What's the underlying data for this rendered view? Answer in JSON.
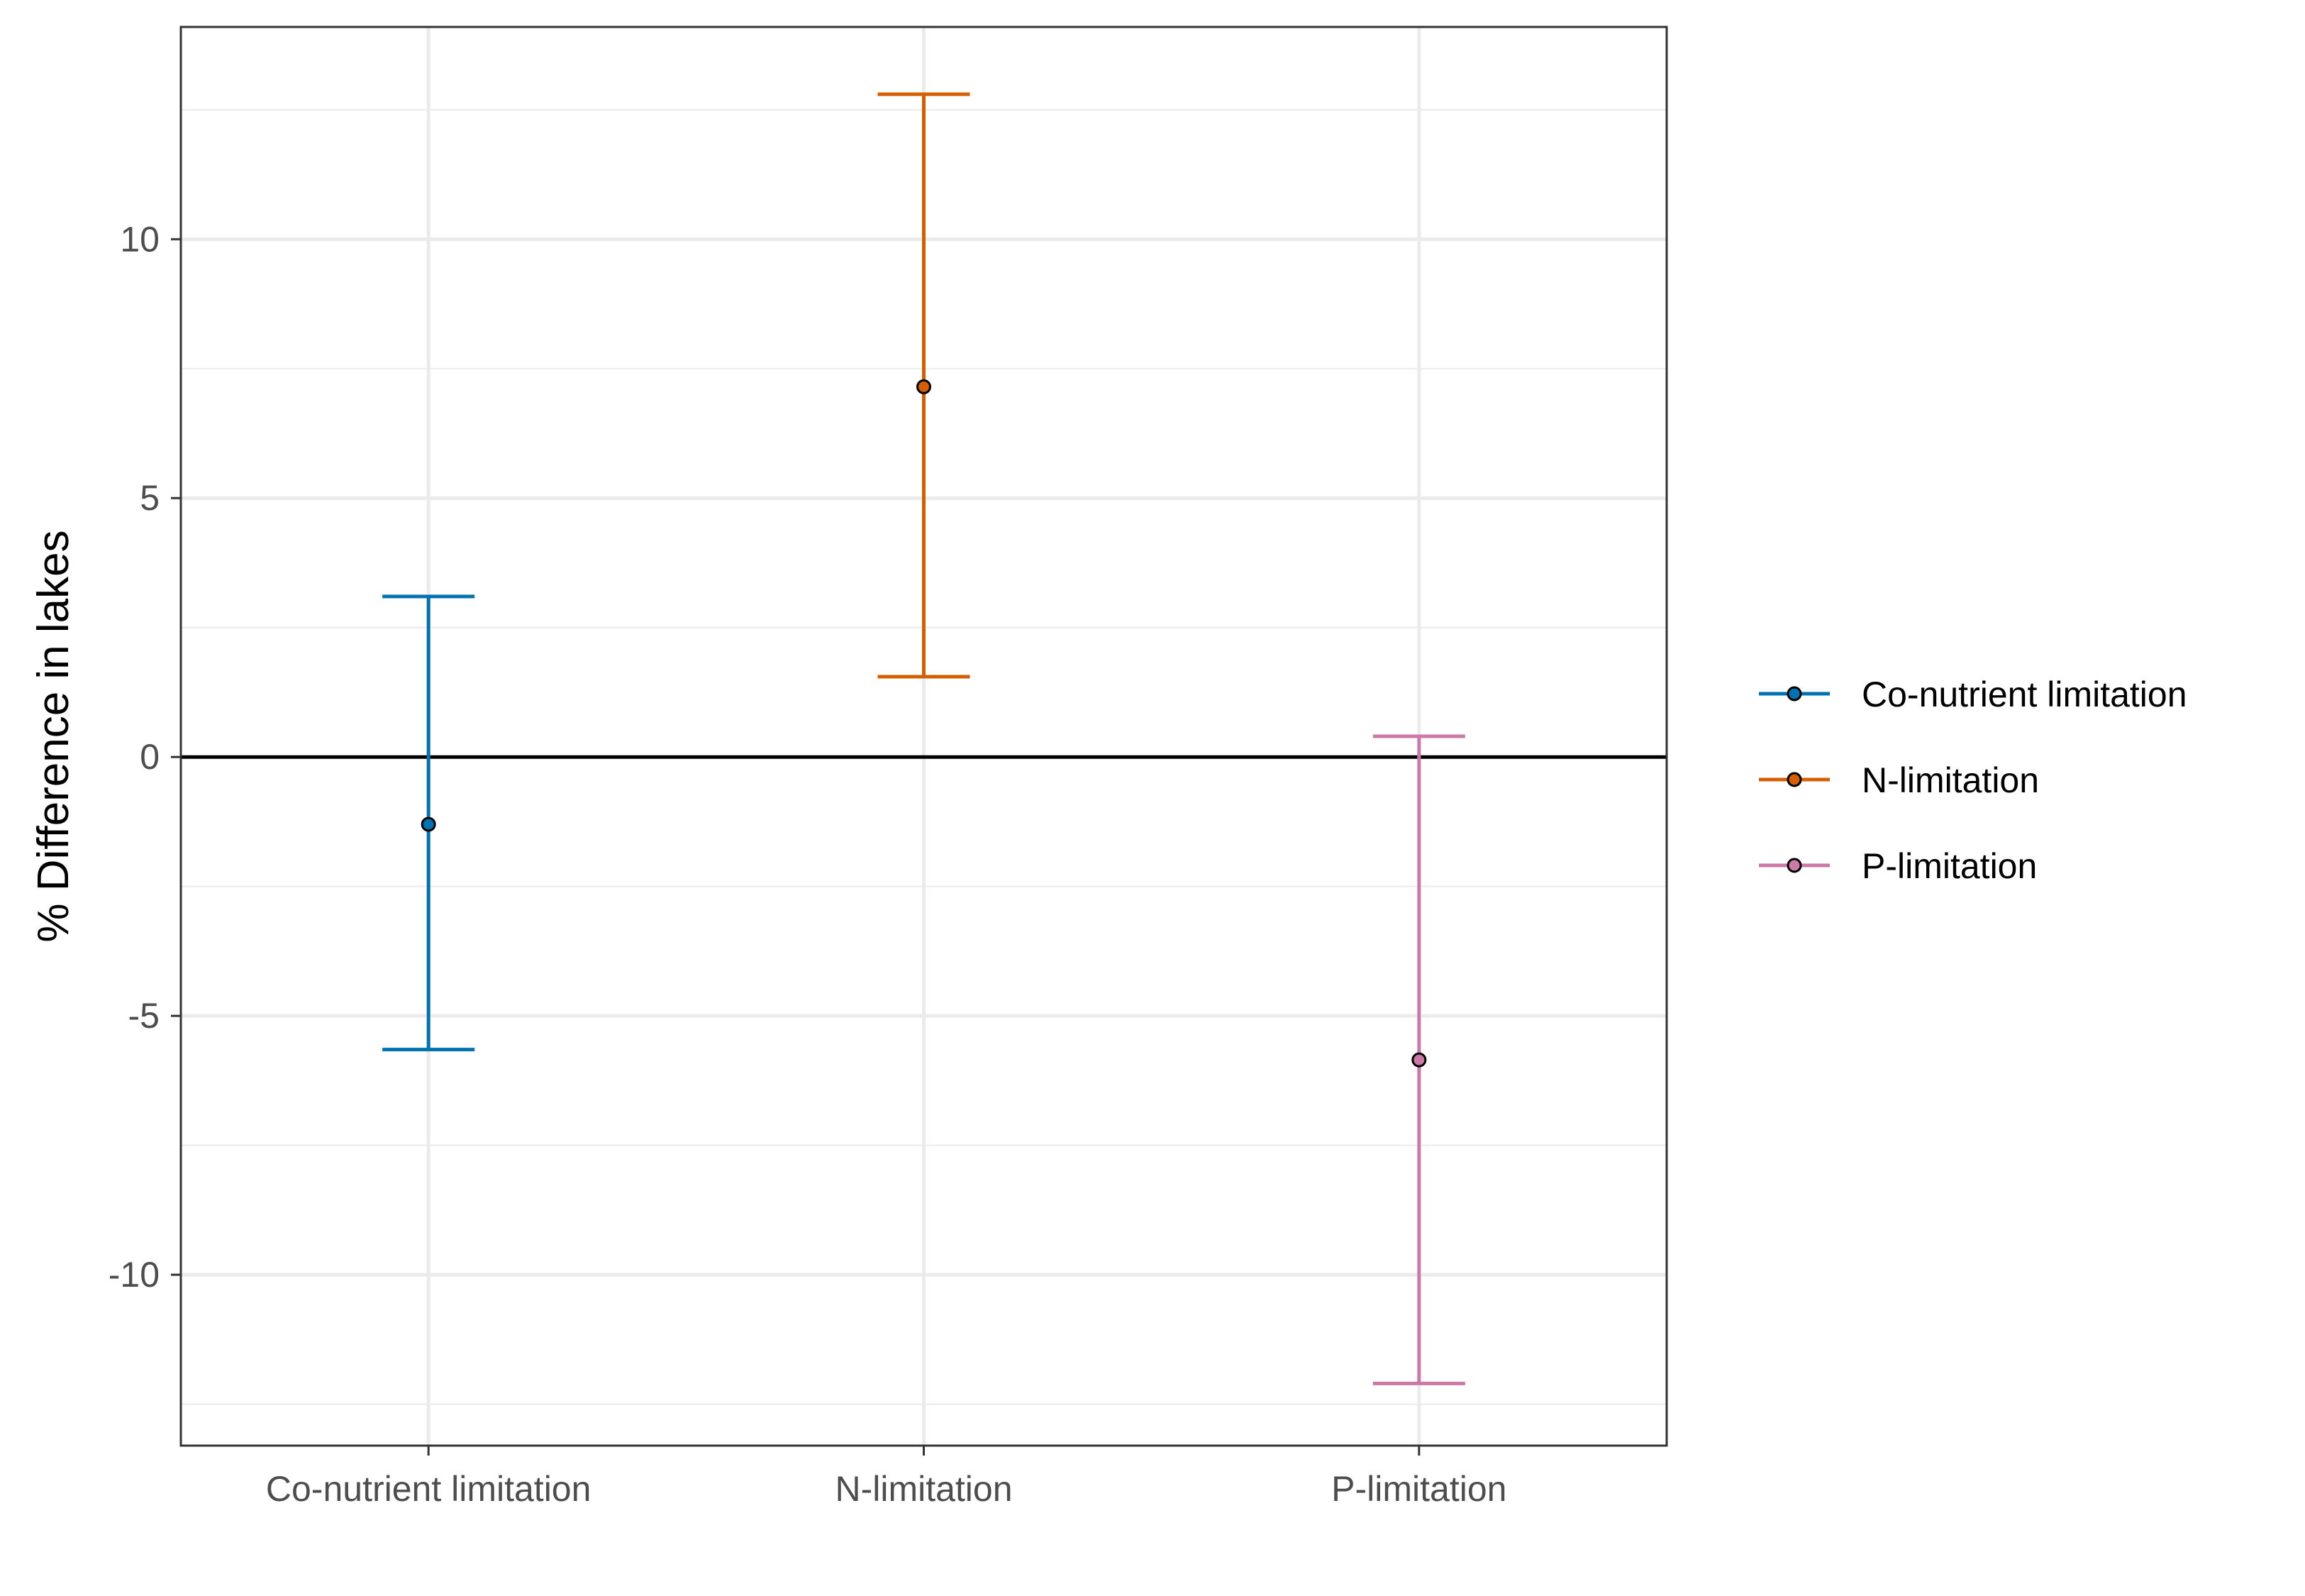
{
  "chart_data": {
    "type": "errorbar",
    "title": "",
    "xlabel": "",
    "ylabel": "% Difference in lakes",
    "categories": [
      "Co-nutrient limitation",
      "N-limitation",
      "P-limitation"
    ],
    "ylim": [
      -13.3,
      14.1
    ],
    "yticks": [
      -10,
      -5,
      0,
      5,
      10
    ],
    "ytick_labels": [
      "-10",
      "-5",
      "0",
      "5",
      "10"
    ],
    "reference_line": 0,
    "grid": true,
    "legend_position": "right",
    "series": [
      {
        "name": "Co-nutrient limitation",
        "color": "#0072B2",
        "estimate": -1.3,
        "lower": -5.65,
        "upper": 3.1
      },
      {
        "name": "N-limitation",
        "color": "#D55E00",
        "estimate": 7.15,
        "lower": 1.55,
        "upper": 12.8
      },
      {
        "name": "P-limitation",
        "color": "#CC79A7",
        "estimate": -5.85,
        "lower": -12.1,
        "upper": 0.4
      }
    ]
  }
}
